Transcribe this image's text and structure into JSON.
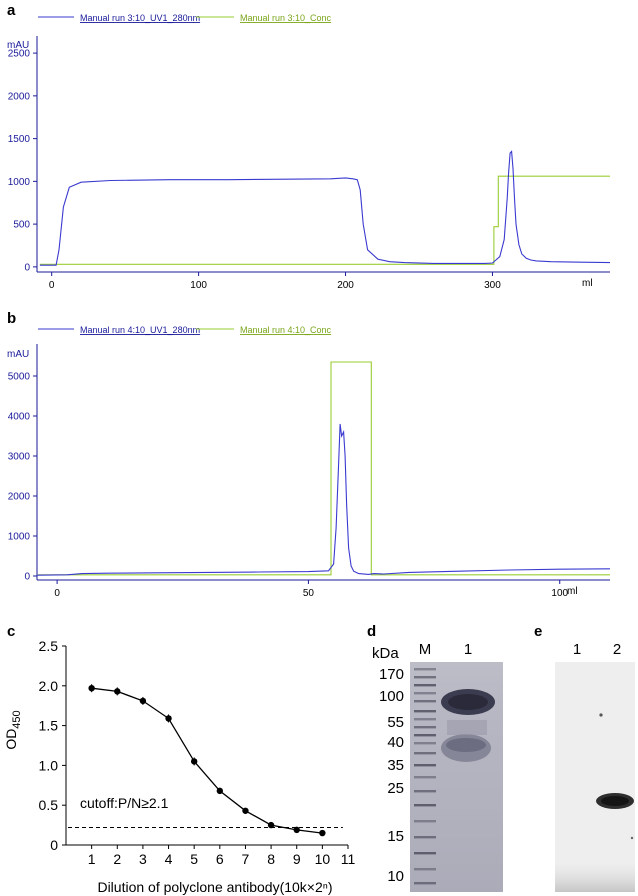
{
  "panels": {
    "a": "a",
    "b": "b",
    "c": "c",
    "d": "d",
    "e": "e"
  },
  "chart_data": [
    {
      "panel": "a",
      "type": "line",
      "ylabel": "mAU",
      "xunit": "ml",
      "xlim": [
        -10,
        380
      ],
      "ylim": [
        -60,
        2700
      ],
      "xticks": [
        0,
        100,
        200,
        300
      ],
      "yticks": [
        0,
        500,
        1000,
        1500,
        2000,
        2500
      ],
      "series": [
        {
          "name": "Manual run 3:10_UV1_280nm",
          "color": "#3a3ad0",
          "x": [
            -8,
            3,
            5,
            8,
            12,
            20,
            40,
            80,
            120,
            160,
            190,
            200,
            205,
            208,
            210,
            212,
            215,
            222,
            230,
            240,
            260,
            280,
            295,
            300,
            305,
            308,
            310,
            311,
            312,
            313,
            314,
            315,
            316,
            318,
            320,
            323,
            326,
            330,
            340,
            360,
            380
          ],
          "y": [
            20,
            20,
            200,
            700,
            930,
            990,
            1010,
            1020,
            1020,
            1025,
            1030,
            1040,
            1030,
            1020,
            900,
            500,
            200,
            90,
            60,
            50,
            40,
            40,
            40,
            45,
            120,
            320,
            800,
            1100,
            1330,
            1350,
            1150,
            800,
            500,
            260,
            150,
            100,
            80,
            70,
            60,
            55,
            50
          ]
        },
        {
          "name": "Manual run 3:10_Conc",
          "color": "#9acd32",
          "x": [
            -8,
            301,
            301,
            304,
            304,
            380
          ],
          "y": [
            30,
            30,
            470,
            470,
            1060,
            1060
          ]
        }
      ]
    },
    {
      "panel": "b",
      "type": "line",
      "ylabel": "mAU",
      "xunit": "ml",
      "xlim": [
        -4,
        110
      ],
      "ylim": [
        -100,
        5800
      ],
      "xticks": [
        0,
        50,
        100
      ],
      "yticks": [
        0,
        1000,
        2000,
        3000,
        4000,
        5000
      ],
      "series": [
        {
          "name": "Manual run 4:10_UV1_280nm",
          "color": "#3a3ad0",
          "x": [
            -4,
            2,
            5,
            10,
            20,
            30,
            40,
            50,
            54,
            55,
            55.5,
            56,
            56.3,
            56.6,
            57,
            57.3,
            57.6,
            58,
            58.5,
            59,
            60,
            62,
            63,
            65,
            70,
            80,
            90,
            100,
            110
          ],
          "y": [
            20,
            30,
            60,
            70,
            80,
            90,
            100,
            110,
            130,
            300,
            1200,
            2800,
            3800,
            3500,
            3600,
            3000,
            1800,
            700,
            250,
            120,
            60,
            40,
            60,
            50,
            90,
            120,
            150,
            170,
            180
          ]
        },
        {
          "name": "Manual run 4:10_Conc",
          "color": "#9acd32",
          "x": [
            -4,
            54.5,
            54.5,
            62.5,
            62.5,
            110
          ],
          "y": [
            30,
            30,
            5350,
            5350,
            30,
            30
          ]
        }
      ]
    },
    {
      "panel": "c",
      "type": "line",
      "ylabel": "OD450",
      "xlabel": "Dilution of polyclone antibody(10k×2ⁿ)",
      "xlim": [
        0,
        11
      ],
      "ylim": [
        0,
        2.5
      ],
      "xticks": [
        1,
        2,
        3,
        4,
        5,
        6,
        7,
        8,
        9,
        10,
        11
      ],
      "yticks": [
        0,
        0.5,
        1.0,
        1.5,
        2.0,
        2.5
      ],
      "ytick_labels": [
        "0",
        "0.5",
        "1.0",
        "1.5",
        "2.0",
        "2.5"
      ],
      "annotation": "cutoff:P/N≥2.1",
      "cutoff_y": 0.22,
      "x": [
        1,
        2,
        3,
        4,
        5,
        6,
        7,
        8,
        9,
        10
      ],
      "y": [
        1.97,
        1.93,
        1.81,
        1.59,
        1.05,
        0.68,
        0.43,
        0.25,
        0.19,
        0.15
      ]
    }
  ],
  "gel_d": {
    "unit": "kDa",
    "lanes": [
      "M",
      "1"
    ],
    "markers": [
      "170",
      "100",
      "55",
      "40",
      "35",
      "25",
      "15",
      "10"
    ]
  },
  "gel_e": {
    "lanes": [
      "1",
      "2"
    ]
  }
}
